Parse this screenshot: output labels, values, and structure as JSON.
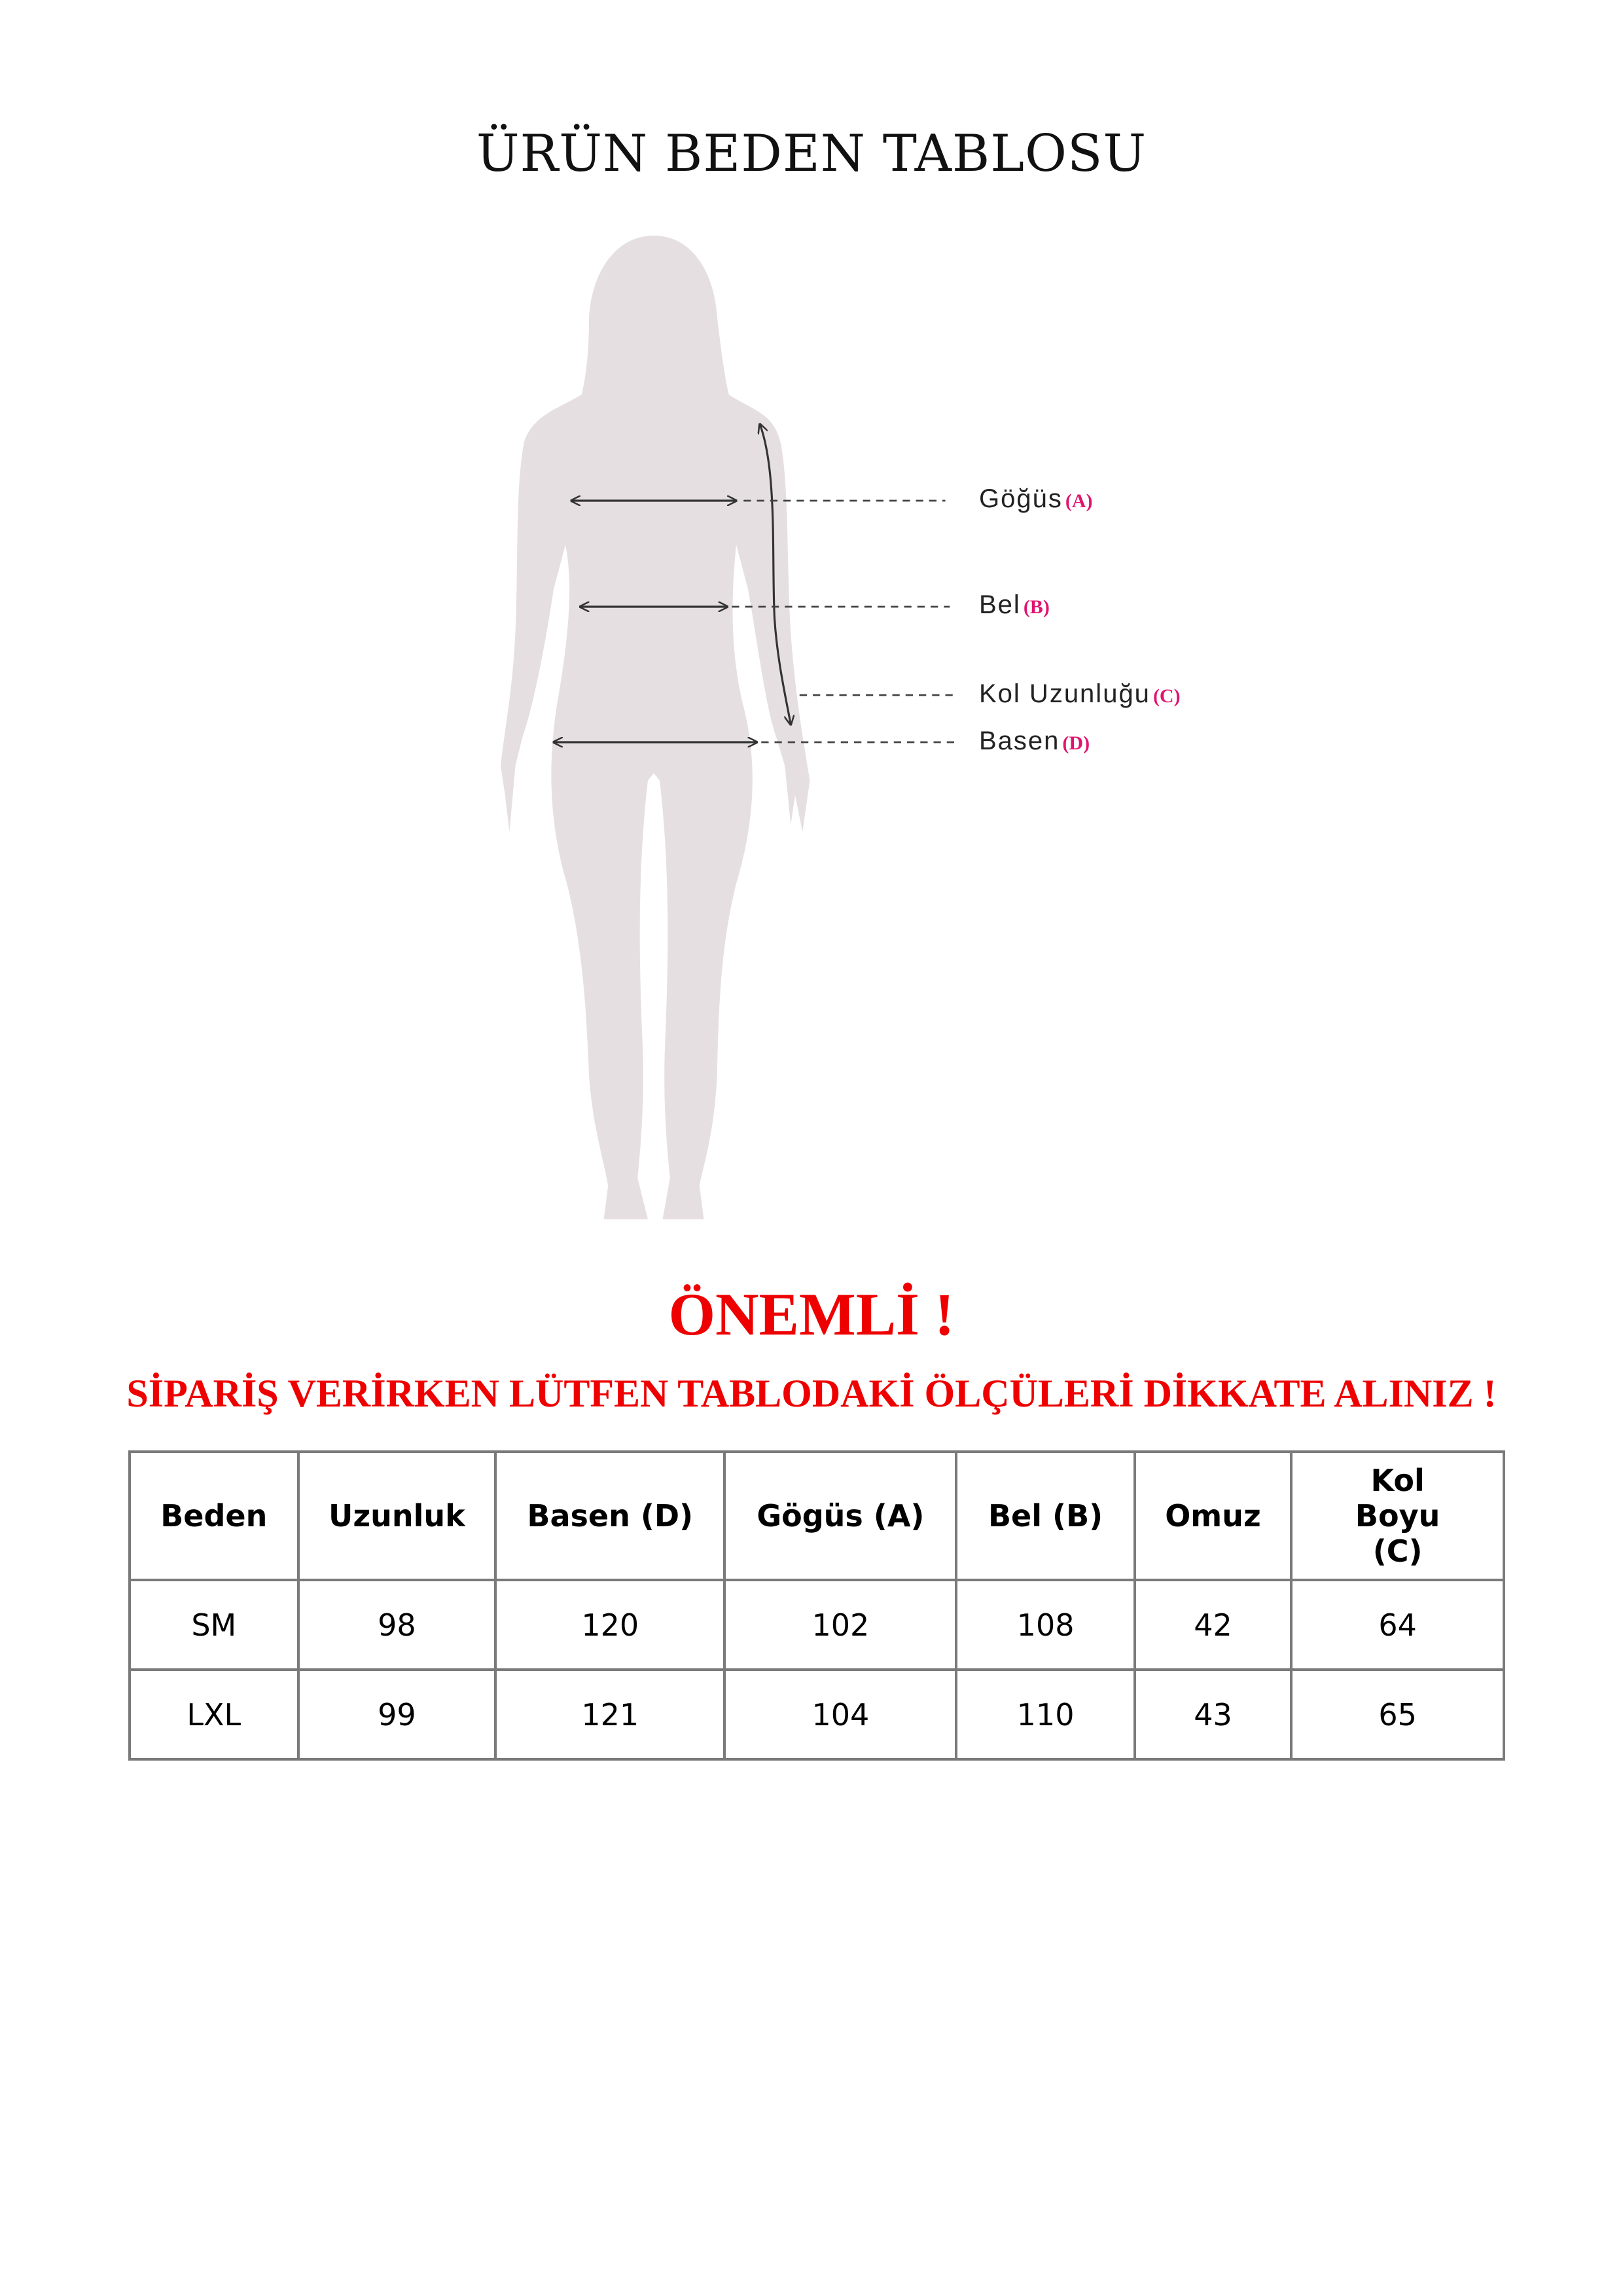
{
  "title": "ÜRÜN BEDEN TABLOSU",
  "figure": {
    "labels": [
      {
        "name": "Göğüs",
        "code": "(A)"
      },
      {
        "name": "Bel",
        "code": "(B)"
      },
      {
        "name": "Kol Uzunluğu",
        "code": "(C)"
      },
      {
        "name": "Basen",
        "code": "(D)"
      }
    ],
    "silhouette_color": "#e6dfe1",
    "code_color": "#e0146e"
  },
  "important": "ÖNEMLİ !",
  "warning": "SİPARİŞ VERİRKEN LÜTFEN TABLODAKİ ÖLÇÜLERİ DİKKATE ALINIZ !",
  "alert_color": "#ee0000",
  "table": {
    "headers": [
      "Beden",
      "Uzunluk",
      "Basen (D)",
      "Gögüs (A)",
      "Bel (B)",
      "Omuz",
      "Kol Boyu (C)"
    ],
    "rows": [
      [
        "SM",
        "98",
        "120",
        "102",
        "108",
        "42",
        "64"
      ],
      [
        "LXL",
        "99",
        "121",
        "104",
        "110",
        "43",
        "65"
      ]
    ]
  }
}
